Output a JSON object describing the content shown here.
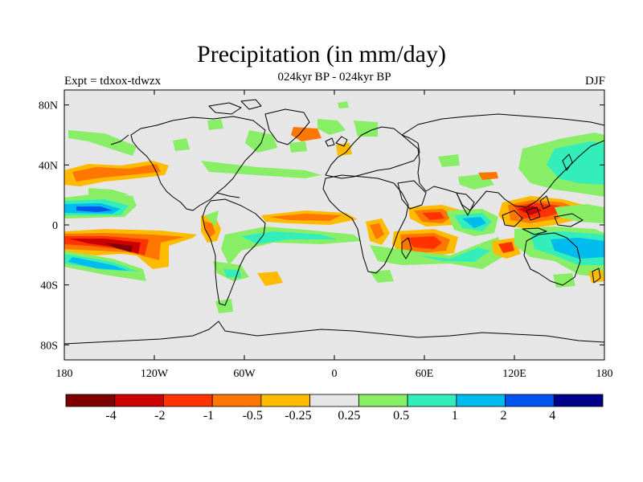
{
  "title": "Precipitation (in mm/day)",
  "subtitle": "024kyr BP - 024kyr BP",
  "left_label": "Expt = tdxox-tdwzx",
  "right_label": "DJF",
  "map": {
    "projection": "cylindrical equidistant",
    "lon_range": [
      -180,
      180
    ],
    "lat_range": [
      -90,
      90
    ],
    "background": "#e6e6e6",
    "lon_ticks": [
      {
        "value": -180,
        "label": "180"
      },
      {
        "value": -120,
        "label": "120W"
      },
      {
        "value": -60,
        "label": "60W"
      },
      {
        "value": 0,
        "label": "0"
      },
      {
        "value": 60,
        "label": "60E"
      },
      {
        "value": 120,
        "label": "120E"
      },
      {
        "value": 180,
        "label": "180"
      }
    ],
    "lat_ticks": [
      {
        "value": 80,
        "label": "80N"
      },
      {
        "value": 40,
        "label": "40N"
      },
      {
        "value": 0,
        "label": "0"
      },
      {
        "value": -40,
        "label": "40S"
      },
      {
        "value": -80,
        "label": "80S"
      }
    ]
  },
  "colorbar": {
    "colors": [
      "#7f0000",
      "#cc0000",
      "#ff3300",
      "#ff7700",
      "#ffbb00",
      "#e6e6e6",
      "#88ee66",
      "#33eebb",
      "#00bbee",
      "#0055ee",
      "#000088"
    ],
    "labels": [
      "-4",
      "-2",
      "-1",
      "-0.5",
      "-0.25",
      "0.25",
      "0.5",
      "1",
      "2",
      "4"
    ]
  },
  "chart_data": {
    "type": "heatmap",
    "title": "Precipitation (in mm/day)",
    "subtitle": "024kyr BP - 024kyr BP",
    "levels": [
      -4,
      -2,
      -1,
      -0.5,
      -0.25,
      0.25,
      0.5,
      1,
      2,
      4
    ],
    "anomalies": [
      {
        "lon": -150,
        "lat": -12,
        "value": -3
      },
      {
        "lon": -150,
        "lat": 10,
        "value": 2.5
      },
      {
        "lon": -125,
        "lat": 30,
        "value": -0.75
      },
      {
        "lon": -30,
        "lat": 4,
        "value": -0.75
      },
      {
        "lon": -30,
        "lat": -5,
        "value": 0.75
      },
      {
        "lon": 65,
        "lat": 5,
        "value": -1.5
      },
      {
        "lon": 55,
        "lat": -10,
        "value": -1.5
      },
      {
        "lon": 135,
        "lat": 10,
        "value": -2
      },
      {
        "lon": 155,
        "lat": -12,
        "value": 1.5
      },
      {
        "lon": 155,
        "lat": 35,
        "value": 1
      }
    ]
  }
}
